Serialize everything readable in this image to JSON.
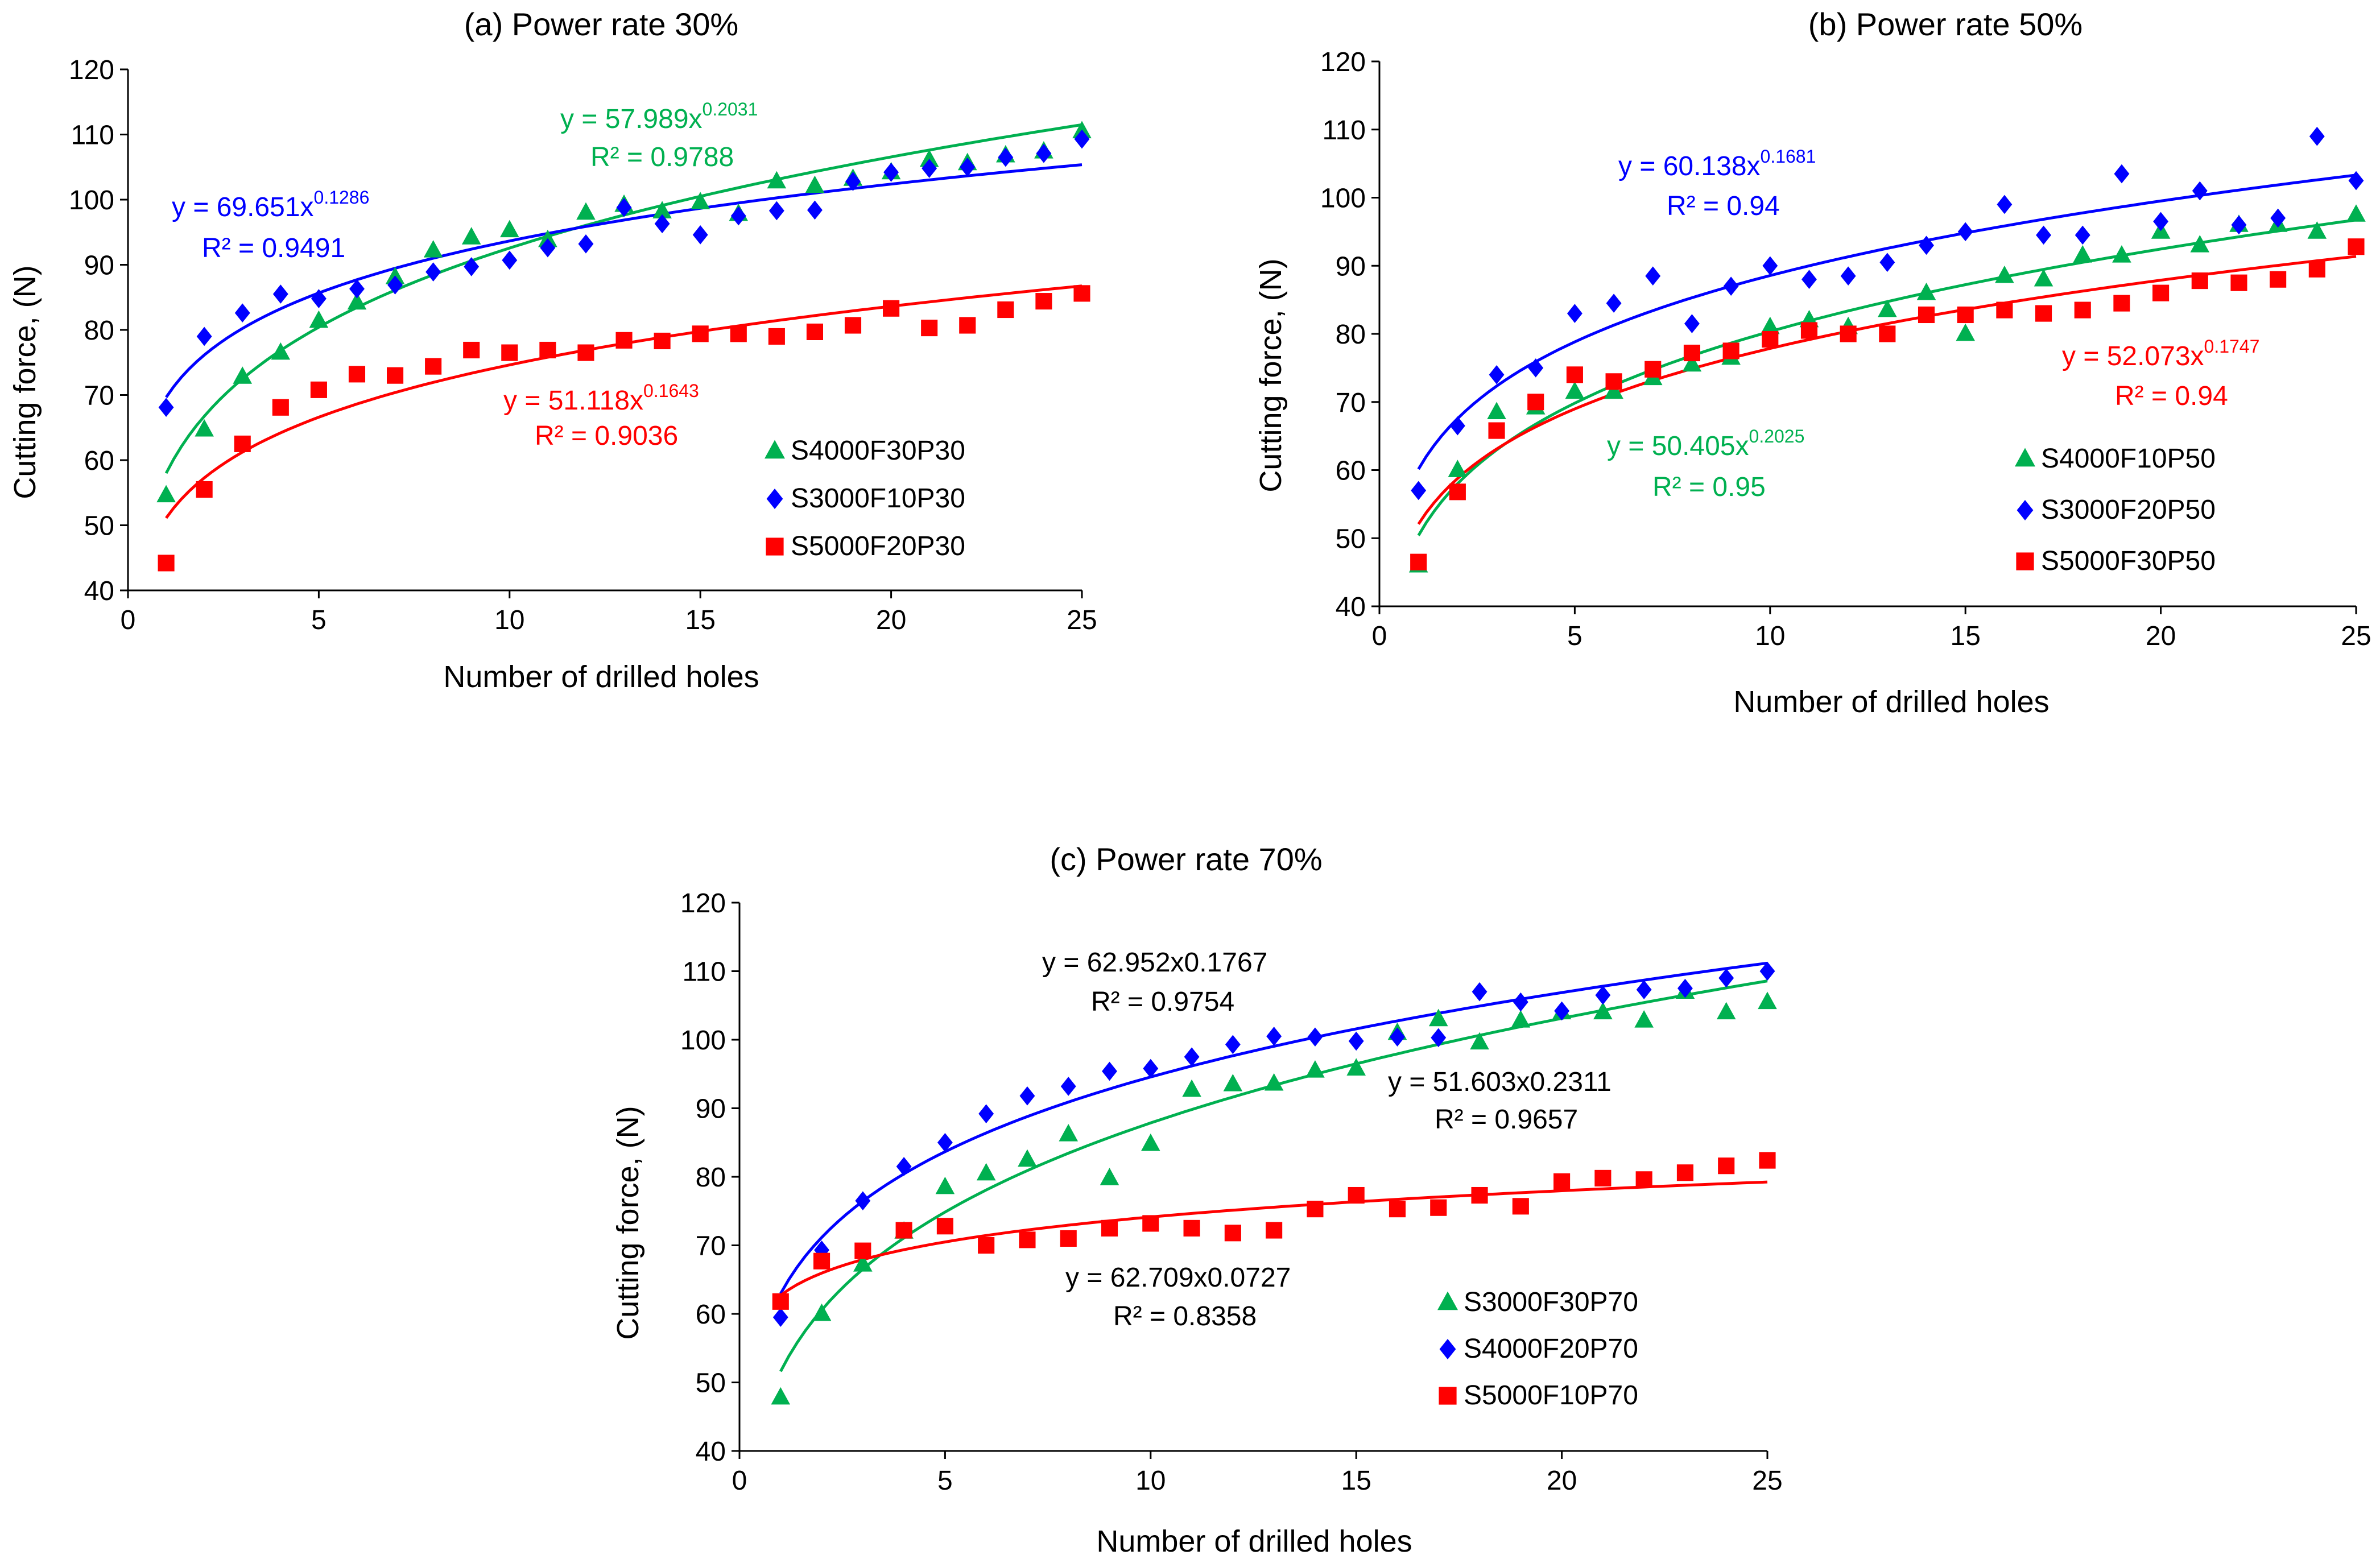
{
  "figure": {
    "background": "#ffffff",
    "axis_color": "#000000"
  },
  "chart_data": [
    {
      "type": "scatter",
      "title": "(a) Power rate  30%",
      "xlabel": "Number of drilled holes",
      "ylabel": "Cutting force, (N)",
      "xlim": [
        0,
        25
      ],
      "ylim": [
        40,
        120
      ],
      "xticks": [
        0,
        5,
        10,
        15,
        20,
        25
      ],
      "yticks": [
        40,
        50,
        60,
        70,
        80,
        90,
        100,
        110,
        120
      ],
      "grid": false,
      "legend_position": "bottom-right",
      "series": [
        {
          "name": "S4000F30P30",
          "marker": "triangle",
          "color": "#00b050",
          "x": [
            1,
            2,
            3,
            4,
            5,
            6,
            7,
            8,
            9,
            10,
            11,
            12,
            13,
            14,
            15,
            16,
            17,
            18,
            19,
            20,
            21,
            22,
            23,
            24,
            25
          ],
          "values": [
            54.6,
            64.7,
            72.8,
            76.5,
            81.4,
            84.2,
            88.1,
            92.2,
            94.2,
            95.3,
            93.8,
            98.0,
            99.2,
            98.2,
            99.6,
            97.8,
            102.8,
            102.1,
            103.2,
            104.2,
            106.1,
            105.6,
            106.8,
            107.4,
            110.5
          ],
          "fit": {
            "a": 57.989,
            "b": 0.2031,
            "equation": "y = 57.989x",
            "exponent": "0.2031",
            "r2": "R² = 0.9788"
          }
        },
        {
          "name": "S3000F10P30",
          "marker": "diamond",
          "color": "#0000ff",
          "x": [
            1,
            2,
            3,
            4,
            5,
            6,
            7,
            8,
            9,
            10,
            11,
            12,
            13,
            14,
            15,
            16,
            17,
            18,
            19,
            20,
            21,
            22,
            23,
            24,
            25
          ],
          "values": [
            68.1,
            79.0,
            82.6,
            85.5,
            84.8,
            86.3,
            86.9,
            88.9,
            89.7,
            90.7,
            92.6,
            93.2,
            98.8,
            96.3,
            94.6,
            97.5,
            98.3,
            98.4,
            102.8,
            104.2,
            104.8,
            105.0,
            106.5,
            107.1,
            109.3
          ],
          "fit": {
            "a": 69.651,
            "b": 0.1286,
            "equation": "y = 69.651x",
            "exponent": "0.1286",
            "r2": "R² = 0.9491"
          }
        },
        {
          "name": "S5000F20P30",
          "marker": "square",
          "color": "#ff0000",
          "x": [
            1,
            2,
            3,
            4,
            5,
            6,
            7,
            8,
            9,
            10,
            11,
            12,
            13,
            14,
            15,
            16,
            17,
            18,
            19,
            20,
            21,
            22,
            23,
            24,
            25
          ],
          "values": [
            44.2,
            55.5,
            62.5,
            68.1,
            70.8,
            73.2,
            73.0,
            74.4,
            76.9,
            76.5,
            76.9,
            76.5,
            78.4,
            78.3,
            79.4,
            79.4,
            79.0,
            79.7,
            80.7,
            83.3,
            80.3,
            80.7,
            83.1,
            84.4,
            85.6
          ],
          "fit": {
            "a": 51.118,
            "b": 0.1643,
            "equation": "y = 51.118x",
            "exponent": "0.1643",
            "r2": "R² = 0.9036"
          }
        }
      ]
    },
    {
      "type": "scatter",
      "title": "(b) Power rate  50%",
      "xlabel": "Number of drilled holes",
      "ylabel": "Cutting force, (N)",
      "xlim": [
        0,
        25
      ],
      "ylim": [
        40,
        120
      ],
      "xticks": [
        0,
        5,
        10,
        15,
        20,
        25
      ],
      "yticks": [
        40,
        50,
        60,
        70,
        80,
        90,
        100,
        110,
        120
      ],
      "grid": false,
      "legend_position": "bottom-right",
      "series": [
        {
          "name": "S4000F10P50",
          "marker": "triangle",
          "color": "#00b050",
          "x": [
            1,
            2,
            3,
            4,
            5,
            6,
            7,
            8,
            9,
            10,
            11,
            12,
            13,
            14,
            15,
            16,
            17,
            18,
            19,
            20,
            21,
            22,
            23,
            24,
            25
          ],
          "values": [
            46.0,
            60.0,
            68.5,
            69.2,
            71.5,
            71.5,
            73.5,
            75.5,
            76.5,
            81.0,
            82.0,
            81.0,
            83.5,
            86.0,
            80.0,
            88.5,
            88.0,
            91.5,
            91.5,
            95.0,
            93.0,
            96.0,
            96.0,
            95.0,
            97.5
          ],
          "fit": {
            "a": 50.405,
            "b": 0.2025,
            "equation": "y = 50.405x",
            "exponent": "0.2025",
            "r2": "R² = 0.95"
          }
        },
        {
          "name": "S3000F20P50",
          "marker": "diamond",
          "color": "#0000ff",
          "x": [
            1,
            2,
            3,
            4,
            5,
            6,
            7,
            8,
            9,
            10,
            11,
            12,
            13,
            14,
            15,
            16,
            17,
            18,
            19,
            20,
            21,
            22,
            23,
            24,
            25
          ],
          "values": [
            57.0,
            66.5,
            74.0,
            75.0,
            83.0,
            84.5,
            88.5,
            81.5,
            87.0,
            90.0,
            88.0,
            88.5,
            90.5,
            93.0,
            95.0,
            99.0,
            94.5,
            94.5,
            103.5,
            96.5,
            101.0,
            96.0,
            97.0,
            109.0,
            102.5
          ],
          "fit": {
            "a": 60.138,
            "b": 0.1681,
            "equation": "y = 60.138x",
            "exponent": "0.1681",
            "r2": "R² = 0.94"
          }
        },
        {
          "name": "S5000F30P50",
          "marker": "square",
          "color": "#ff0000",
          "x": [
            1,
            2,
            3,
            4,
            5,
            6,
            7,
            8,
            9,
            10,
            11,
            12,
            13,
            14,
            15,
            16,
            17,
            18,
            19,
            20,
            21,
            22,
            23,
            24,
            25
          ],
          "values": [
            46.5,
            56.8,
            65.8,
            70.0,
            74.0,
            73.0,
            74.8,
            77.2,
            77.5,
            79.2,
            80.5,
            80.0,
            80.0,
            82.8,
            82.8,
            83.5,
            83.0,
            83.5,
            84.5,
            86.0,
            87.8,
            87.5,
            88.0,
            89.5,
            92.8
          ],
          "fit": {
            "a": 52.073,
            "b": 0.1747,
            "equation": "y = 52.073x",
            "exponent": "0.1747",
            "r2": "R² = 0.94"
          }
        }
      ]
    },
    {
      "type": "scatter",
      "title": "(c) Power rate  70%",
      "xlabel": "Number of drilled holes",
      "ylabel": "Cutting force, (N)",
      "xlim": [
        0,
        25
      ],
      "ylim": [
        40,
        120
      ],
      "xticks": [
        0,
        5,
        10,
        15,
        20,
        25
      ],
      "yticks": [
        40,
        50,
        60,
        70,
        80,
        90,
        100,
        110,
        120
      ],
      "grid": false,
      "legend_position": "bottom-right",
      "series": [
        {
          "name": "S3000F30P70",
          "marker": "triangle",
          "color": "#00b050",
          "x": [
            1,
            2,
            3,
            4,
            5,
            6,
            7,
            8,
            9,
            10,
            11,
            12,
            13,
            14,
            15,
            16,
            17,
            18,
            19,
            20,
            21,
            22,
            23,
            24,
            25
          ],
          "values": [
            47.8,
            60.0,
            67.2,
            72.0,
            78.5,
            80.5,
            82.5,
            86.2,
            79.8,
            84.8,
            92.7,
            93.5,
            93.6,
            95.5,
            95.8,
            101.0,
            103.0,
            99.6,
            102.8,
            104.0,
            104.0,
            102.8,
            107.0,
            104.0,
            105.5
          ],
          "fit": {
            "a": 51.603,
            "b": 0.2311,
            "equation": "y = 51.603x0.2311",
            "exponent": "",
            "r2": "R² = 0.9657"
          }
        },
        {
          "name": "S4000F20P70",
          "marker": "diamond",
          "color": "#0000ff",
          "x": [
            1,
            2,
            3,
            4,
            5,
            6,
            7,
            8,
            9,
            10,
            11,
            12,
            13,
            14,
            15,
            16,
            17,
            18,
            19,
            20,
            21,
            22,
            23,
            24,
            25
          ],
          "values": [
            59.5,
            69.3,
            76.5,
            81.5,
            85.0,
            89.2,
            91.8,
            93.2,
            95.4,
            95.8,
            97.5,
            99.3,
            100.5,
            100.4,
            99.8,
            100.4,
            100.3,
            107.0,
            105.5,
            104.2,
            106.5,
            107.3,
            107.5,
            109.0,
            110.0
          ],
          "fit": {
            "a": 62.952,
            "b": 0.1767,
            "equation": "y = 62.952x0.1767",
            "exponent": "",
            "r2": "R² = 0.9754"
          }
        },
        {
          "name": "S5000F10P70",
          "marker": "square",
          "color": "#ff0000",
          "x": [
            1,
            2,
            3,
            4,
            5,
            6,
            7,
            8,
            9,
            10,
            11,
            12,
            13,
            14,
            15,
            16,
            17,
            18,
            19,
            20,
            21,
            22,
            23,
            24,
            25
          ],
          "values": [
            61.8,
            67.7,
            69.2,
            72.2,
            72.8,
            70.0,
            70.8,
            71.0,
            72.5,
            73.2,
            72.5,
            71.8,
            72.2,
            75.3,
            77.3,
            75.3,
            75.5,
            77.3,
            75.7,
            79.3,
            79.8,
            79.6,
            80.6,
            81.6,
            82.4
          ],
          "fit": {
            "a": 62.709,
            "b": 0.0727,
            "equation": "y = 62.709x0.0727",
            "exponent": "",
            "r2": "R² = 0.8358"
          }
        }
      ]
    }
  ]
}
